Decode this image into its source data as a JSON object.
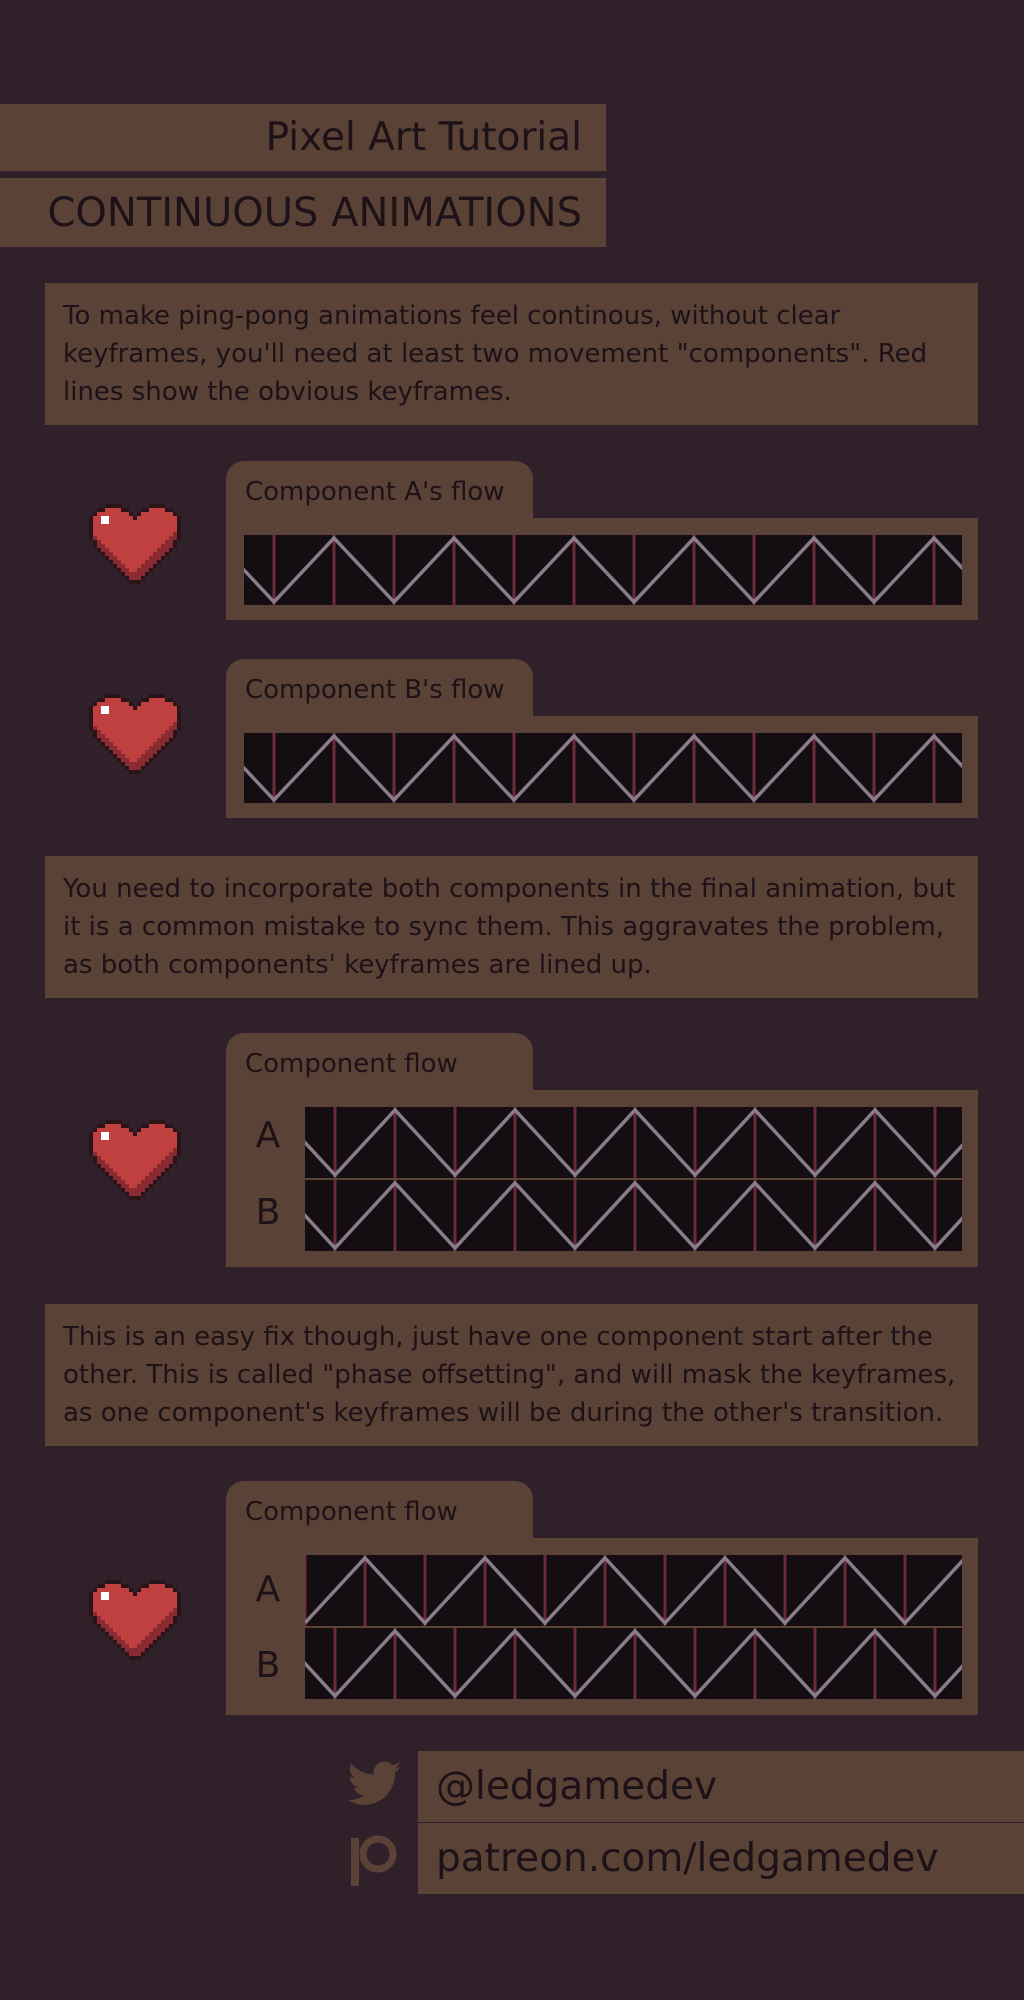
{
  "header": {
    "subtitle": "Pixel Art Tutorial",
    "title": "CONTINUOUS ANIMATIONS"
  },
  "intro_text": "To make ping-pong animations feel continous, without clear keyframes, you'll need at least two movement \"components\". Red lines show the obvious keyframes.",
  "flow_a": {
    "label": "Component A's flow"
  },
  "flow_b": {
    "label": "Component B's flow"
  },
  "sync_text": "You need to incorporate both components in the final animation, but it is a common mistake to sync them. This aggravates the problem, as both components' keyframes are lined up.",
  "synced": {
    "label": "Component flow",
    "row_a": "A",
    "row_b": "B"
  },
  "offset_text": "This is an easy fix though, just have one component start after the other. This is called \"phase offsetting\", and will mask the keyframes, as one component's keyframes will be during the other's transition.",
  "offset": {
    "label": "Component flow",
    "row_a": "A",
    "row_b": "B"
  },
  "social": {
    "twitter_handle": "@ledgamedev",
    "patreon_url": "patreon.com/ledgamedev",
    "twitter_icon": "twitter-bird-icon",
    "patreon_icon": "patreon-icon"
  },
  "colors": {
    "background": "#2f2029",
    "panel": "#5a4237",
    "strip": "#140d12",
    "keyframe_line": "#6e2a3a",
    "zigzag": "#8a7d8a",
    "heart": "#c0403f"
  }
}
